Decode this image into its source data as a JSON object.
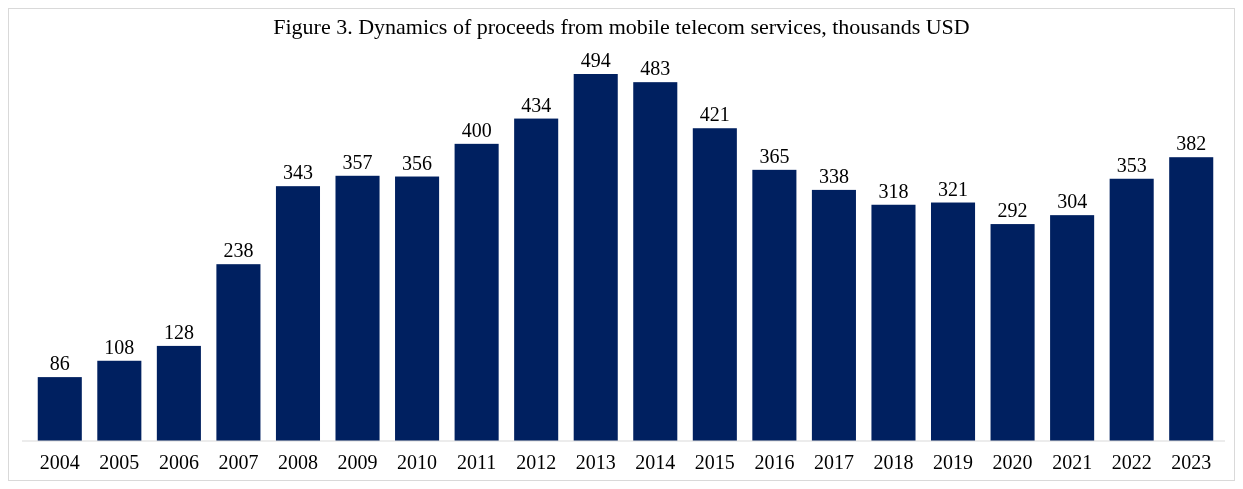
{
  "chart_data": {
    "type": "bar",
    "title": "Figure 3. Dynamics of proceeds from mobile telecom services, thousands USD",
    "categories": [
      "2004",
      "2005",
      "2006",
      "2007",
      "2008",
      "2009",
      "2010",
      "2011",
      "2012",
      "2013",
      "2014",
      "2015",
      "2016",
      "2017",
      "2018",
      "2019",
      "2020",
      "2021",
      "2022",
      "2023"
    ],
    "values": [
      86,
      108,
      128,
      238,
      343,
      357,
      356,
      400,
      434,
      494,
      483,
      421,
      365,
      338,
      318,
      321,
      292,
      304,
      353,
      382
    ],
    "color": "#002060",
    "data_labels": true
  }
}
